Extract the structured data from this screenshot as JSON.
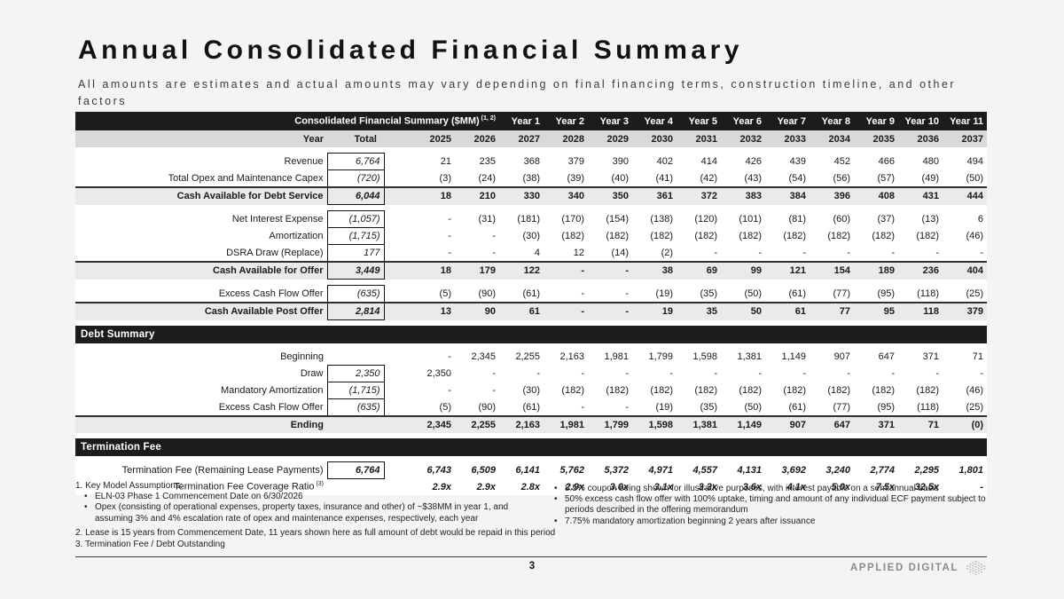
{
  "header": {
    "title": "Annual Consolidated Financial Summary",
    "subtitle": "All amounts are estimates and actual amounts may vary depending on final financing terms, construction timeline, and other factors"
  },
  "colors": {
    "page_bg": "#f4f3f6",
    "section_bar_bg": "#1c1c1c",
    "years_row_bg": "#d9d9d9",
    "summary_row_bg": "#eaeaea",
    "box_border": "#141414"
  },
  "table": {
    "title": "Consolidated Financial Summary ($MM)",
    "title_sup": "(1, 2)",
    "year_headers": [
      "Year 1",
      "Year 2",
      "Year 3",
      "Year 4",
      "Year 5",
      "Year 6",
      "Year 7",
      "Year 8",
      "Year 9",
      "Year 10",
      "Year 11"
    ],
    "col_label": "Year",
    "col_total": "Total",
    "years": [
      "2025",
      "2026",
      "2027",
      "2028",
      "2029",
      "2030",
      "2031",
      "2032",
      "2033",
      "2034",
      "2035",
      "2036",
      "2037"
    ],
    "blocks": [
      {
        "type": "rows",
        "rows": [
          {
            "label": "Revenue",
            "total": "6,764",
            "boxed": true,
            "bold": false,
            "values_bold_italic": false,
            "sup": "",
            "values": [
              "21",
              "235",
              "368",
              "379",
              "390",
              "402",
              "414",
              "426",
              "439",
              "452",
              "466",
              "480",
              "494"
            ]
          },
          {
            "label": "Total Opex and Maintenance Capex",
            "total": "(720)",
            "boxed": true,
            "bold": false,
            "values_bold_italic": false,
            "sup": "",
            "values": [
              "(3)",
              "(24)",
              "(38)",
              "(39)",
              "(40)",
              "(41)",
              "(42)",
              "(43)",
              "(54)",
              "(56)",
              "(57)",
              "(49)",
              "(50)"
            ]
          },
          {
            "label": "Cash Available for Debt Service",
            "total": "6,044",
            "boxed": true,
            "bold": true,
            "values_bold_italic": false,
            "sup": "",
            "values": [
              "18",
              "210",
              "330",
              "340",
              "350",
              "361",
              "372",
              "383",
              "384",
              "396",
              "408",
              "431",
              "444"
            ]
          }
        ]
      },
      {
        "type": "rows",
        "rows": [
          {
            "label": "Net Interest Expense",
            "total": "(1,057)",
            "boxed": true,
            "bold": false,
            "values_bold_italic": false,
            "sup": "",
            "values": [
              "-",
              "(31)",
              "(181)",
              "(170)",
              "(154)",
              "(138)",
              "(120)",
              "(101)",
              "(81)",
              "(60)",
              "(37)",
              "(13)",
              "6"
            ]
          },
          {
            "label": "Amortization",
            "total": "(1,715)",
            "boxed": true,
            "bold": false,
            "values_bold_italic": false,
            "sup": "",
            "values": [
              "-",
              "-",
              "(30)",
              "(182)",
              "(182)",
              "(182)",
              "(182)",
              "(182)",
              "(182)",
              "(182)",
              "(182)",
              "(182)",
              "(46)"
            ]
          },
          {
            "label": "DSRA Draw (Replace)",
            "total": "177",
            "boxed": true,
            "bold": false,
            "values_bold_italic": false,
            "sup": "",
            "values": [
              "-",
              "-",
              "4",
              "12",
              "(14)",
              "(2)",
              "-",
              "-",
              "-",
              "-",
              "-",
              "-",
              "-"
            ]
          },
          {
            "label": "Cash Available for Offer",
            "total": "3,449",
            "boxed": true,
            "bold": true,
            "values_bold_italic": false,
            "sup": "",
            "values": [
              "18",
              "179",
              "122",
              "-",
              "-",
              "38",
              "69",
              "99",
              "121",
              "154",
              "189",
              "236",
              "404"
            ]
          }
        ]
      },
      {
        "type": "rows",
        "rows": [
          {
            "label": "Excess Cash Flow Offer",
            "total": "(635)",
            "boxed": true,
            "bold": false,
            "values_bold_italic": false,
            "sup": "",
            "values": [
              "(5)",
              "(90)",
              "(61)",
              "-",
              "-",
              "(19)",
              "(35)",
              "(50)",
              "(61)",
              "(77)",
              "(95)",
              "(118)",
              "(25)"
            ]
          },
          {
            "label": "Cash Available Post Offer",
            "total": "2,814",
            "boxed": true,
            "bold": true,
            "values_bold_italic": false,
            "sup": "",
            "values": [
              "13",
              "90",
              "61",
              "-",
              "-",
              "19",
              "35",
              "50",
              "61",
              "77",
              "95",
              "118",
              "379"
            ]
          }
        ]
      },
      {
        "type": "bar",
        "label": "Debt Summary"
      },
      {
        "type": "rows",
        "rows": [
          {
            "label": "Beginning",
            "total": "",
            "boxed": false,
            "bold": false,
            "values_bold_italic": false,
            "sup": "",
            "values": [
              "-",
              "2,345",
              "2,255",
              "2,163",
              "1,981",
              "1,799",
              "1,598",
              "1,381",
              "1,149",
              "907",
              "647",
              "371",
              "71"
            ]
          },
          {
            "label": "Draw",
            "total": "2,350",
            "boxed": true,
            "bold": false,
            "values_bold_italic": false,
            "sup": "",
            "values": [
              "2,350",
              "-",
              "-",
              "-",
              "-",
              "-",
              "-",
              "-",
              "-",
              "-",
              "-",
              "-",
              "-"
            ]
          },
          {
            "label": "Mandatory Amortization",
            "total": "(1,715)",
            "boxed": true,
            "bold": false,
            "values_bold_italic": false,
            "sup": "",
            "values": [
              "-",
              "-",
              "(30)",
              "(182)",
              "(182)",
              "(182)",
              "(182)",
              "(182)",
              "(182)",
              "(182)",
              "(182)",
              "(182)",
              "(46)"
            ]
          },
          {
            "label": "Excess Cash Flow Offer",
            "total": "(635)",
            "boxed": true,
            "bold": false,
            "values_bold_italic": false,
            "sup": "",
            "values": [
              "(5)",
              "(90)",
              "(61)",
              "-",
              "-",
              "(19)",
              "(35)",
              "(50)",
              "(61)",
              "(77)",
              "(95)",
              "(118)",
              "(25)"
            ]
          },
          {
            "label": "Ending",
            "total": "",
            "boxed": false,
            "bold": true,
            "values_bold_italic": false,
            "sup": "",
            "values": [
              "2,345",
              "2,255",
              "2,163",
              "1,981",
              "1,799",
              "1,598",
              "1,381",
              "1,149",
              "907",
              "647",
              "371",
              "71",
              "(0)"
            ]
          }
        ]
      },
      {
        "type": "bar",
        "label": "Termination Fee"
      },
      {
        "type": "rows",
        "rows": [
          {
            "label": "Termination Fee (Remaining Lease Payments)",
            "total": "6,764",
            "boxed": true,
            "bold": false,
            "values_bold_italic": true,
            "sup": "",
            "values": [
              "6,743",
              "6,509",
              "6,141",
              "5,762",
              "5,372",
              "4,971",
              "4,557",
              "4,131",
              "3,692",
              "3,240",
              "2,774",
              "2,295",
              "1,801"
            ]
          },
          {
            "label": "Termination Fee Coverage Ratio",
            "total": "",
            "boxed": false,
            "bold": false,
            "values_bold_italic": true,
            "sup": "(3)",
            "values": [
              "2.9x",
              "2.9x",
              "2.8x",
              "2.9x",
              "3.0x",
              "3.1x",
              "3.3x",
              "3.6x",
              "4.1x",
              "5.0x",
              "7.5x",
              "32.5x",
              "-"
            ]
          }
        ]
      }
    ]
  },
  "footnotes": {
    "left_title": "1. Key Model Assumptions:",
    "left_bullets": [
      "ELN-03 Phase 1 Commencement Date on 6/30/2026",
      "Opex (consisting of operational expenses, property taxes, insurance and other) of ~$38MM in year 1, and assuming 3% and 4% escalation rate of opex and maintenance expenses, respectively, each year"
    ],
    "right_bullets": [
      "8.5% coupon being shown for illustrative purposes, with interest payable on a semiannual basis",
      "50% excess cash flow offer with 100% uptake, timing and amount of any individual ECF payment subject to periods described in the offering memorandum",
      "7.75% mandatory amortization beginning 2 years after issuance"
    ],
    "notes": [
      "2. Lease is 15 years from Commencement Date, 11 years shown here as full amount of debt would be repaid in this period",
      "3. Termination Fee / Debt Outstanding"
    ]
  },
  "footer": {
    "page_number": "3",
    "brand": "APPLIED DIGITAL"
  }
}
